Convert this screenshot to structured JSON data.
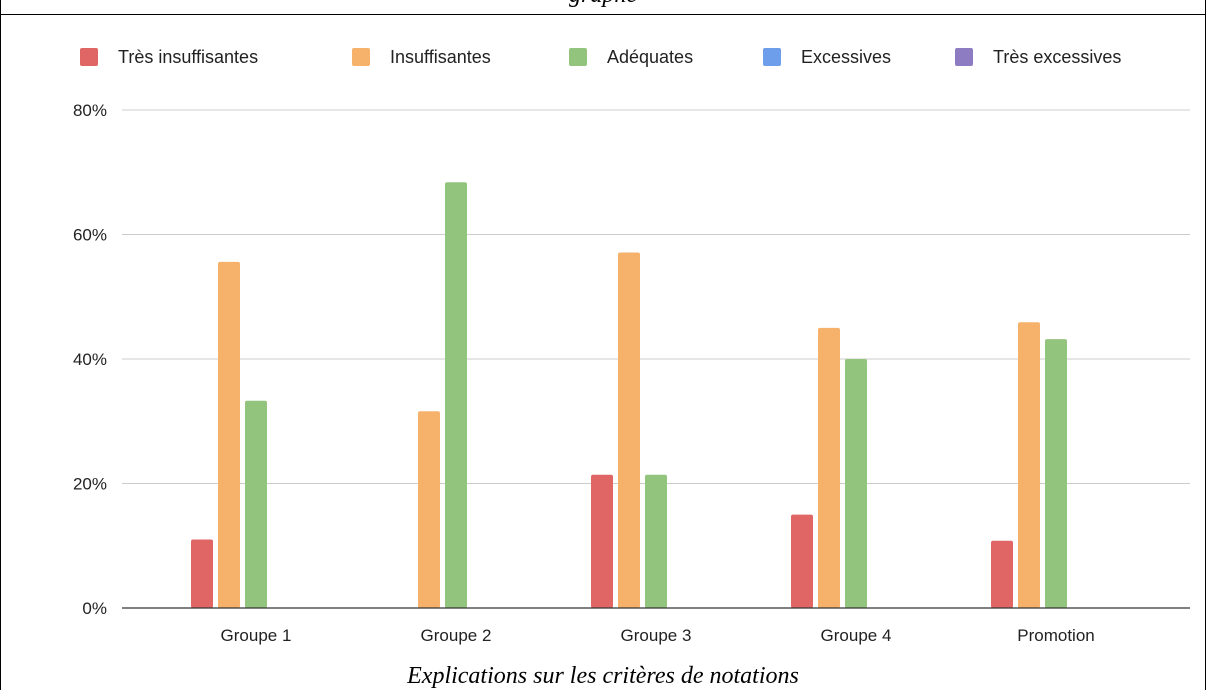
{
  "page": {
    "top_caption": "graphe",
    "bottom_caption": "Explications sur les critères de notations"
  },
  "chart_data": {
    "type": "bar",
    "categories": [
      "Groupe 1",
      "Groupe 2",
      "Groupe 3",
      "Groupe 4",
      "Promotion"
    ],
    "series": [
      {
        "name": "Très insuffisantes",
        "color": "#e06666",
        "values": [
          11,
          0,
          21.4,
          15,
          10.8
        ]
      },
      {
        "name": "Insuffisantes",
        "color": "#f6b26b",
        "values": [
          55.6,
          31.6,
          57.1,
          45,
          45.9
        ]
      },
      {
        "name": "Adéquates",
        "color": "#93c47d",
        "values": [
          33.3,
          68.4,
          21.4,
          40,
          43.2
        ]
      },
      {
        "name": "Excessives",
        "color": "#6d9eeb",
        "values": [
          0,
          0,
          0,
          0,
          0
        ]
      },
      {
        "name": "Très excessives",
        "color": "#8e7cc3",
        "values": [
          0,
          0,
          0,
          0,
          0
        ]
      }
    ],
    "ylim": [
      0,
      80
    ],
    "yticks": [
      0,
      20,
      40,
      60,
      80
    ],
    "ytick_labels": [
      "0%",
      "20%",
      "40%",
      "60%",
      "80%"
    ],
    "grid": true,
    "legend_position": "top",
    "title": "",
    "xlabel": "",
    "ylabel": ""
  }
}
